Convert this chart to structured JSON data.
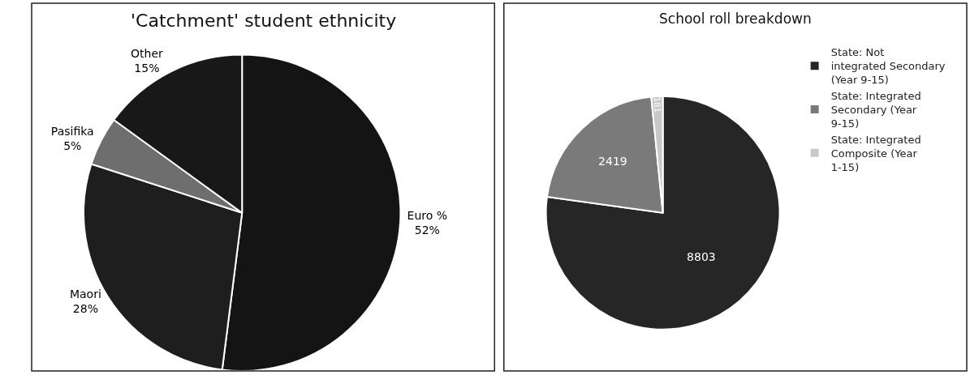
{
  "chart_data": [
    {
      "type": "pie",
      "title": "'Catchment' student ethnicity",
      "categories": [
        "Euro %",
        "Maori",
        "Pasifika",
        "Other"
      ],
      "values": [
        52,
        28,
        5,
        15
      ],
      "value_labels": [
        "52%",
        "28%",
        "5%",
        "15%"
      ],
      "colors": [
        "#141414",
        "#1e1e1e",
        "#6e6e6e",
        "#181818"
      ],
      "legend": false
    },
    {
      "type": "pie",
      "title": "School roll breakdown",
      "categories": [
        "State: Not integrated Secondary (Year 9-15)",
        "State: Integrated Secondary (Year 9-15)",
        "State: Integrated Composite (Year 1-15)"
      ],
      "values": [
        8803,
        2419,
        181
      ],
      "colors": [
        "#262626",
        "#7a7a7a",
        "#c8c8c8"
      ],
      "data_labels": true,
      "legend": "right"
    }
  ]
}
